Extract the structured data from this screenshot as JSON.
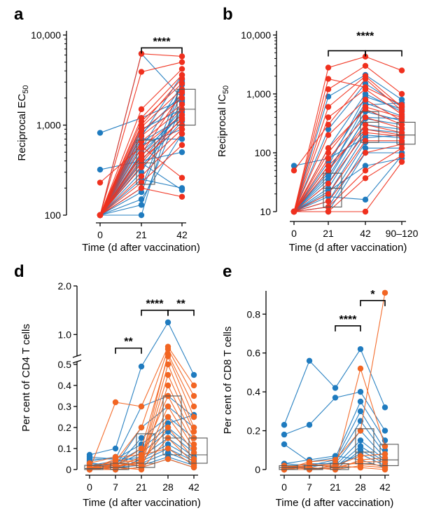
{
  "colors": {
    "blue": "#1f7bbf",
    "red": "#f0301e",
    "orange": "#f26522",
    "box": "#555555",
    "axis": "#000000"
  },
  "panels": [
    {
      "letter": "a",
      "ylabel": "Reciprocal EC",
      "ylabel_sub": "50",
      "xlabel": "Time (d after vaccination)",
      "scale": "log",
      "ylim": [
        100,
        10000
      ],
      "yticks": [
        {
          "v": 100,
          "t": "100"
        },
        {
          "v": 1000,
          "t": "1,000"
        },
        {
          "v": 10000,
          "t": "10,000"
        }
      ],
      "categories": [
        "0",
        "21",
        "42"
      ],
      "series_colors": [
        "blue",
        "red"
      ],
      "line_series": [
        {
          "color": "blue",
          "values": [
            [
              100,
              6200,
              2000
            ],
            [
              100,
              100,
              3200
            ],
            [
              100,
              180,
              2400
            ],
            [
              100,
              300,
              1800
            ],
            [
              100,
              450,
              1500
            ],
            [
              100,
              500,
              1300
            ],
            [
              100,
              550,
              2800
            ],
            [
              100,
              600,
              900
            ],
            [
              100,
              650,
              1200
            ],
            [
              100,
              700,
              700
            ],
            [
              100,
              750,
              3600
            ],
            [
              100,
              200,
              3000
            ],
            [
              100,
              350,
              1100
            ],
            [
              100,
              400,
              500
            ],
            [
              100,
              800,
              2200
            ],
            [
              100,
              250,
              200
            ],
            [
              100,
              380,
              190
            ],
            [
              100,
              130,
              1700
            ],
            [
              820,
              1200,
              1900
            ],
            [
              320,
              400,
              1400
            ],
            [
              100,
              150,
              800
            ],
            [
              100,
              900,
              1500
            ]
          ]
        },
        {
          "color": "red",
          "values": [
            [
              100,
              6200,
              5800
            ],
            [
              100,
              3900,
              5000
            ],
            [
              100,
              1500,
              4200
            ],
            [
              100,
              1200,
              3600
            ],
            [
              100,
              1100,
              2900
            ],
            [
              100,
              950,
              2500
            ],
            [
              100,
              860,
              2000
            ],
            [
              100,
              760,
              1700
            ],
            [
              100,
              660,
              1500
            ],
            [
              100,
              560,
              1300
            ],
            [
              100,
              460,
              1150
            ],
            [
              100,
              420,
              1000
            ],
            [
              100,
              340,
              900
            ],
            [
              100,
              270,
              800
            ],
            [
              100,
              230,
              600
            ],
            [
              100,
              1000,
              3300
            ],
            [
              100,
              480,
              2300
            ],
            [
              230,
              580,
              260
            ],
            [
              100,
              200,
              160
            ],
            [
              100,
              380,
              1200
            ]
          ]
        }
      ],
      "boxes": [
        {
          "cat": 1,
          "q1": 220,
          "med": 380,
          "q3": 680
        },
        {
          "cat": 2,
          "q1": 1000,
          "med": 1500,
          "q3": 2500
        }
      ],
      "brackets": [
        {
          "from": 1,
          "to": 2,
          "label": "****",
          "y": 7200
        }
      ]
    },
    {
      "letter": "b",
      "ylabel": "Reciprocal IC",
      "ylabel_sub": "50",
      "xlabel": "Time (d after vaccination)",
      "scale": "log",
      "ylim": [
        10,
        10000
      ],
      "yticks": [
        {
          "v": 10,
          "t": "10"
        },
        {
          "v": 100,
          "t": "100"
        },
        {
          "v": 1000,
          "t": "1,000"
        },
        {
          "v": 10000,
          "t": "10,000"
        }
      ],
      "categories": [
        "0",
        "21",
        "42",
        "90–120"
      ],
      "line_series": [
        {
          "color": "blue",
          "values": [
            [
              10,
              900,
              2100,
              800
            ],
            [
              10,
              250,
              1500,
              600
            ],
            [
              10,
              120,
              1000,
              500
            ],
            [
              10,
              70,
              700,
              420
            ],
            [
              10,
              50,
              500,
              350
            ],
            [
              10,
              40,
              380,
              300
            ],
            [
              10,
              30,
              300,
              250
            ],
            [
              10,
              25,
              250,
              220
            ],
            [
              10,
              20,
              200,
              180
            ],
            [
              10,
              15,
              150,
              150
            ],
            [
              10,
              12,
              120,
              120
            ],
            [
              10,
              10,
              100,
              100
            ],
            [
              10,
              18,
              16,
              90
            ],
            [
              10,
              22,
              60,
              80
            ],
            [
              60,
              80,
              180,
              200
            ],
            [
              10,
              35,
              400,
              380
            ],
            [
              10,
              45,
              650,
              700
            ],
            [
              10,
              60,
              900,
              550
            ]
          ]
        },
        {
          "color": "red",
          "values": [
            [
              10,
              2800,
              4300,
              2500
            ],
            [
              10,
              1200,
              3000,
              1000
            ],
            [
              10,
              600,
              2000,
              600
            ],
            [
              10,
              400,
              1200,
              450
            ],
            [
              10,
              200,
              800,
              350
            ],
            [
              10,
              120,
              550,
              300
            ],
            [
              10,
              80,
              400,
              260
            ],
            [
              10,
              50,
              300,
              220
            ],
            [
              10,
              30,
              220,
              190
            ],
            [
              10,
              20,
              160,
              160
            ],
            [
              10,
              15,
              100,
              140
            ],
            [
              10,
              12,
              50,
              120
            ],
            [
              10,
              10,
              37,
              90
            ],
            [
              10,
              10,
              10,
              70
            ],
            [
              50,
              300,
              1800,
              520
            ],
            [
              10,
              1800,
              1300,
              650
            ],
            [
              10,
              100,
              600,
              400
            ],
            [
              10,
              60,
              250,
              200
            ]
          ]
        }
      ],
      "boxes": [
        {
          "cat": 1,
          "q1": 12,
          "med": 25,
          "q3": 45
        },
        {
          "cat": 2,
          "q1": 150,
          "med": 330,
          "q3": 500
        },
        {
          "cat": 3,
          "q1": 140,
          "med": 200,
          "q3": 330
        }
      ],
      "brackets": [
        {
          "from": 1,
          "to": 2,
          "label": "",
          "y": 5400
        },
        {
          "from": 2,
          "to": 3,
          "label": "",
          "y": 5400
        },
        {
          "from": 1.5,
          "to": 2.5,
          "label": "****",
          "y": 7500,
          "no_ticks": true
        }
      ]
    },
    {
      "letter": "d",
      "ylabel": "Per cent of CD4 T cells",
      "ylabel_sub": "",
      "xlabel": "Time (d after vaccination)",
      "scale": "broken",
      "ylim": [
        0,
        2.0
      ],
      "yticks": [
        {
          "v": 0,
          "t": "0"
        },
        {
          "v": 0.1,
          "t": "0.1"
        },
        {
          "v": 0.2,
          "t": "0.2"
        },
        {
          "v": 0.3,
          "t": "0.3"
        },
        {
          "v": 0.4,
          "t": "0.4"
        },
        {
          "v": 0.5,
          "t": "0.5"
        },
        {
          "v": 1.0,
          "t": "1.0"
        },
        {
          "v": 2.0,
          "t": "2.0"
        }
      ],
      "categories": [
        "0",
        "7",
        "21",
        "28",
        "42"
      ],
      "line_series": [
        {
          "color": "blue",
          "values": [
            [
              0.07,
              0.1,
              0.49,
              1.25,
              0.45
            ],
            [
              0.05,
              0.05,
              0.3,
              0.35,
              0.25
            ],
            [
              0.03,
              0.02,
              0.2,
              0.3,
              0.2
            ],
            [
              0.02,
              0.01,
              0.15,
              0.25,
              0.15
            ],
            [
              0.01,
              0.03,
              0.1,
              0.2,
              0.1
            ],
            [
              0.0,
              0.02,
              0.08,
              0.18,
              0.08
            ],
            [
              0.02,
              0.04,
              0.06,
              0.15,
              0.06
            ],
            [
              0.01,
              0.0,
              0.05,
              0.12,
              0.05
            ],
            [
              0.04,
              0.06,
              0.04,
              0.1,
              0.04
            ],
            [
              0.03,
              0.02,
              0.03,
              0.08,
              0.03
            ],
            [
              0.0,
              0.01,
              0.02,
              0.06,
              0.02
            ],
            [
              0.06,
              0.05,
              0.12,
              0.22,
              0.26
            ],
            [
              0.0,
              0.0,
              0.01,
              0.05,
              0.01
            ]
          ]
        },
        {
          "color": "orange",
          "values": [
            [
              0.0,
              0.32,
              0.3,
              0.75,
              0.4
            ],
            [
              0.01,
              0.04,
              0.2,
              0.7,
              0.35
            ],
            [
              0.02,
              0.03,
              0.05,
              0.6,
              0.3
            ],
            [
              0.0,
              0.02,
              0.1,
              0.55,
              0.25
            ],
            [
              0.01,
              0.01,
              0.04,
              0.5,
              0.2
            ],
            [
              0.0,
              0.05,
              0.03,
              0.45,
              0.18
            ],
            [
              0.02,
              0.02,
              0.02,
              0.4,
              0.15
            ],
            [
              0.0,
              0.01,
              0.06,
              0.35,
              0.12
            ],
            [
              0.01,
              0.0,
              0.01,
              0.3,
              0.1
            ],
            [
              0.0,
              0.03,
              0.02,
              0.25,
              0.08
            ],
            [
              0.01,
              0.02,
              0.03,
              0.2,
              0.05
            ],
            [
              0.0,
              0.01,
              0.0,
              0.15,
              0.03
            ],
            [
              0.03,
              0.06,
              0.07,
              0.1,
              0.02
            ],
            [
              0.0,
              0.0,
              0.01,
              0.05,
              0.01
            ]
          ]
        }
      ],
      "boxes": [
        {
          "cat": 0,
          "q1": 0.0,
          "med": 0.005,
          "q3": 0.02
        },
        {
          "cat": 1,
          "q1": 0.0,
          "med": 0.01,
          "q3": 0.03
        },
        {
          "cat": 2,
          "q1": 0.01,
          "med": 0.03,
          "q3": 0.17
        },
        {
          "cat": 3,
          "q1": 0.07,
          "med": 0.15,
          "q3": 0.35
        },
        {
          "cat": 4,
          "q1": 0.03,
          "med": 0.07,
          "q3": 0.15
        }
      ],
      "brackets": [
        {
          "from": 1,
          "to": 2,
          "label": "**",
          "y": 0.72
        },
        {
          "from": 2,
          "to": 3,
          "label": "****",
          "y": 1.5
        },
        {
          "from": 3,
          "to": 4,
          "label": "**",
          "y": 1.5
        }
      ]
    },
    {
      "letter": "e",
      "ylabel": "Per cent of CD8 T cells",
      "ylabel_sub": "",
      "xlabel": "Time (d after vaccination)",
      "scale": "linear",
      "ylim": [
        0,
        0.92
      ],
      "yticks": [
        {
          "v": 0,
          "t": "0"
        },
        {
          "v": 0.2,
          "t": "0.2"
        },
        {
          "v": 0.4,
          "t": "0.4"
        },
        {
          "v": 0.6,
          "t": "0.6"
        },
        {
          "v": 0.8,
          "t": "0.8"
        }
      ],
      "categories": [
        "0",
        "7",
        "21",
        "28",
        "42"
      ],
      "line_series": [
        {
          "color": "blue",
          "values": [
            [
              0.23,
              0.56,
              0.42,
              0.62,
              0.32
            ],
            [
              0.18,
              0.23,
              0.37,
              0.4,
              0.2
            ],
            [
              0.13,
              0.04,
              0.06,
              0.35,
              0.15
            ],
            [
              0.03,
              0.02,
              0.05,
              0.3,
              0.1
            ],
            [
              0.02,
              0.01,
              0.04,
              0.25,
              0.08
            ],
            [
              0.01,
              0.03,
              0.03,
              0.2,
              0.06
            ],
            [
              0.0,
              0.02,
              0.02,
              0.15,
              0.05
            ],
            [
              0.02,
              0.0,
              0.01,
              0.12,
              0.04
            ],
            [
              0.01,
              0.01,
              0.0,
              0.1,
              0.03
            ],
            [
              0.0,
              0.0,
              0.02,
              0.08,
              0.02
            ],
            [
              0.03,
              0.05,
              0.07,
              0.05,
              0.01
            ]
          ]
        },
        {
          "color": "orange",
          "values": [
            [
              0.0,
              0.04,
              0.05,
              0.2,
              0.91
            ],
            [
              0.01,
              0.03,
              0.01,
              0.52,
              0.12
            ],
            [
              0.0,
              0.02,
              0.02,
              0.07,
              0.08
            ],
            [
              0.02,
              0.01,
              0.0,
              0.05,
              0.06
            ],
            [
              0.0,
              0.0,
              0.01,
              0.04,
              0.04
            ],
            [
              0.01,
              0.02,
              0.03,
              0.03,
              0.02
            ],
            [
              0.0,
              0.01,
              0.0,
              0.02,
              0.01
            ],
            [
              0.02,
              0.0,
              0.02,
              0.01,
              0.0
            ]
          ]
        }
      ],
      "boxes": [
        {
          "cat": 0,
          "q1": 0.0,
          "med": 0.01,
          "q3": 0.02
        },
        {
          "cat": 1,
          "q1": 0.0,
          "med": 0.005,
          "q3": 0.02
        },
        {
          "cat": 2,
          "q1": 0.0,
          "med": 0.01,
          "q3": 0.03
        },
        {
          "cat": 3,
          "q1": 0.03,
          "med": 0.09,
          "q3": 0.21
        },
        {
          "cat": 4,
          "q1": 0.02,
          "med": 0.05,
          "q3": 0.13
        }
      ],
      "brackets": [
        {
          "from": 2,
          "to": 3,
          "label": "****",
          "y": 0.74
        },
        {
          "from": 3,
          "to": 4,
          "label": "*",
          "y": 0.87
        }
      ]
    }
  ]
}
